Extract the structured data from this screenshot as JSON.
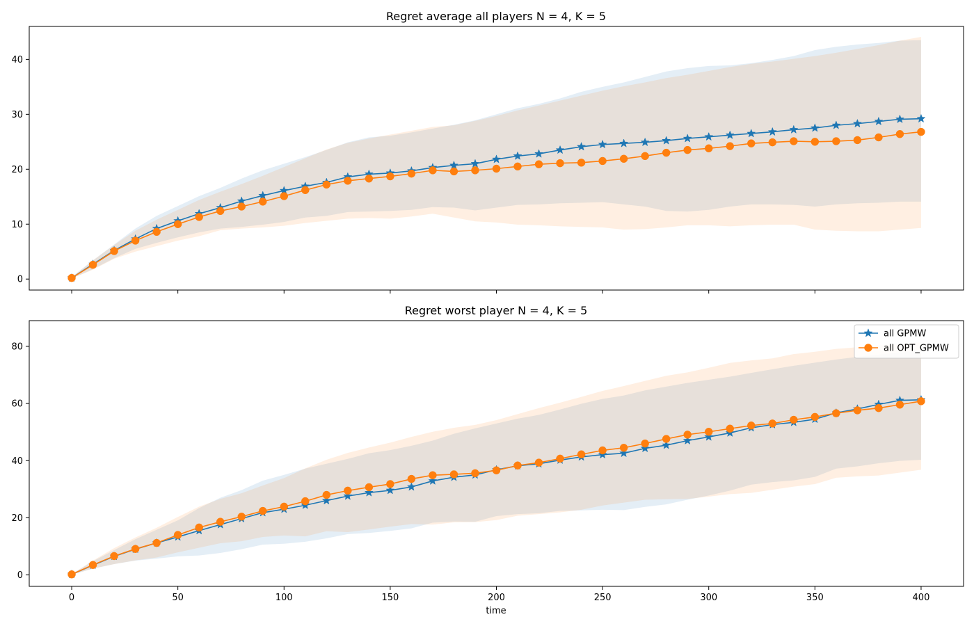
{
  "chart_data": [
    {
      "type": "line",
      "title": "Regret average all players N = 4, K = 5",
      "xlabel": "",
      "ylabel": "",
      "xlim": [
        -20,
        420
      ],
      "ylim": [
        -2,
        46
      ],
      "xticks": [
        0,
        50,
        100,
        150,
        200,
        250,
        300,
        350,
        400
      ],
      "xtick_labels_visible": false,
      "yticks": [
        0,
        10,
        20,
        30,
        40
      ],
      "grid": false,
      "legend": null,
      "x": [
        0,
        10,
        20,
        30,
        40,
        50,
        60,
        70,
        80,
        90,
        100,
        110,
        120,
        130,
        140,
        150,
        160,
        170,
        180,
        190,
        200,
        210,
        220,
        230,
        240,
        250,
        260,
        270,
        280,
        290,
        300,
        310,
        320,
        330,
        340,
        350,
        360,
        370,
        380,
        390,
        400
      ],
      "series": [
        {
          "name": "all GPMW",
          "color": "#1f77b4",
          "marker": "star",
          "values": [
            0.2,
            2.7,
            5.2,
            7.3,
            9.2,
            10.6,
            11.9,
            13.0,
            14.2,
            15.2,
            16.1,
            16.9,
            17.6,
            18.6,
            19.1,
            19.3,
            19.7,
            20.3,
            20.7,
            21.0,
            21.8,
            22.4,
            22.8,
            23.5,
            24.1,
            24.5,
            24.7,
            24.9,
            25.2,
            25.6,
            25.9,
            26.2,
            26.5,
            26.8,
            27.2,
            27.5,
            28.0,
            28.3,
            28.7,
            29.1,
            29.2
          ],
          "band_lower": [
            0.1,
            1.8,
            3.8,
            5.5,
            6.6,
            7.6,
            8.5,
            9.2,
            9.5,
            9.9,
            10.4,
            11.2,
            11.5,
            12.2,
            12.3,
            12.4,
            12.6,
            13.1,
            13.0,
            12.5,
            13.0,
            13.5,
            13.6,
            13.8,
            13.9,
            14.0,
            13.6,
            13.2,
            12.4,
            12.3,
            12.6,
            13.2,
            13.6,
            13.6,
            13.5,
            13.2,
            13.6,
            13.8,
            13.9,
            14.1,
            14.1
          ],
          "band_upper": [
            0.4,
            3.4,
            6.3,
            9.2,
            11.5,
            13.3,
            15.1,
            16.6,
            18.3,
            19.8,
            21.0,
            22.2,
            23.5,
            24.9,
            25.8,
            26.1,
            26.7,
            27.4,
            28.1,
            28.9,
            30.0,
            31.1,
            31.9,
            32.9,
            34.1,
            35.0,
            35.8,
            36.8,
            37.8,
            38.4,
            38.8,
            38.9,
            39.3,
            39.9,
            40.6,
            41.7,
            42.3,
            42.7,
            43.0,
            43.4,
            43.5
          ]
        },
        {
          "name": "all OPT_GPMW",
          "color": "#ff7f0e",
          "marker": "circle",
          "values": [
            0.2,
            2.6,
            5.1,
            7.0,
            8.6,
            10.0,
            11.3,
            12.4,
            13.2,
            14.1,
            15.1,
            16.2,
            17.2,
            17.9,
            18.3,
            18.7,
            19.2,
            19.8,
            19.6,
            19.8,
            20.1,
            20.5,
            20.9,
            21.1,
            21.2,
            21.5,
            21.9,
            22.4,
            23.0,
            23.5,
            23.8,
            24.2,
            24.7,
            24.9,
            25.1,
            25.0,
            25.1,
            25.3,
            25.8,
            26.4,
            26.8
          ],
          "band_lower": [
            0.1,
            1.7,
            3.7,
            5.0,
            6.0,
            7.0,
            7.8,
            8.9,
            9.2,
            9.4,
            9.7,
            10.2,
            10.6,
            11.0,
            11.1,
            11.0,
            11.4,
            11.9,
            11.2,
            10.5,
            10.3,
            9.9,
            9.8,
            9.6,
            9.5,
            9.4,
            9.0,
            9.1,
            9.4,
            9.8,
            9.8,
            9.6,
            9.8,
            9.9,
            9.9,
            9.0,
            8.8,
            8.7,
            8.7,
            9.0,
            9.3
          ],
          "band_upper": [
            0.3,
            3.4,
            6.2,
            8.8,
            10.8,
            12.6,
            14.4,
            15.9,
            17.3,
            18.8,
            20.4,
            22.0,
            23.6,
            24.8,
            25.6,
            26.3,
            27.0,
            27.7,
            28.0,
            28.8,
            29.7,
            30.7,
            31.6,
            32.5,
            33.4,
            34.3,
            35.1,
            35.8,
            36.6,
            37.2,
            37.9,
            38.6,
            39.2,
            39.6,
            40.1,
            40.6,
            41.2,
            41.9,
            42.6,
            43.4,
            44.1
          ]
        }
      ]
    },
    {
      "type": "line",
      "title": "Regret worst player N = 4, K = 5",
      "xlabel": "time",
      "ylabel": "",
      "xlim": [
        -20,
        420
      ],
      "ylim": [
        -4,
        89
      ],
      "xticks": [
        0,
        50,
        100,
        150,
        200,
        250,
        300,
        350,
        400
      ],
      "xtick_labels_visible": true,
      "yticks": [
        0,
        20,
        40,
        60,
        80
      ],
      "grid": false,
      "legend": "top-right",
      "x": [
        0,
        10,
        20,
        30,
        40,
        50,
        60,
        70,
        80,
        90,
        100,
        110,
        120,
        130,
        140,
        150,
        160,
        170,
        180,
        190,
        200,
        210,
        220,
        230,
        240,
        250,
        260,
        270,
        280,
        290,
        300,
        310,
        320,
        330,
        340,
        350,
        360,
        370,
        380,
        390,
        400
      ],
      "series": [
        {
          "name": "all GPMW",
          "color": "#1f77b4",
          "marker": "star",
          "values": [
            0.2,
            3.4,
            6.5,
            9.0,
            11.2,
            13.3,
            15.5,
            17.6,
            19.7,
            21.8,
            23.0,
            24.4,
            26.0,
            27.6,
            28.8,
            29.6,
            30.8,
            32.9,
            34.2,
            35.0,
            36.8,
            38.2,
            38.9,
            40.2,
            41.3,
            42.1,
            42.6,
            44.3,
            45.4,
            47.0,
            48.3,
            49.7,
            51.5,
            52.6,
            53.4,
            54.5,
            56.7,
            58.1,
            59.7,
            61.1,
            61.3
          ],
          "band_lower": [
            0.1,
            2.2,
            3.8,
            5.0,
            5.7,
            6.5,
            6.8,
            7.7,
            9.0,
            10.6,
            10.9,
            11.6,
            12.8,
            14.3,
            14.7,
            15.4,
            16.3,
            18.3,
            18.7,
            18.6,
            20.6,
            21.3,
            21.6,
            22.4,
            22.6,
            22.8,
            22.7,
            23.8,
            24.7,
            26.3,
            27.8,
            29.5,
            31.6,
            32.5,
            33.1,
            34.3,
            37.2,
            38.0,
            39.1,
            39.9,
            40.3
          ],
          "band_upper": [
            0.3,
            4.8,
            8.7,
            12.5,
            15.8,
            19.1,
            23.4,
            27.0,
            29.7,
            33.0,
            35.0,
            37.2,
            38.9,
            40.6,
            42.6,
            43.7,
            45.2,
            47.0,
            49.4,
            51.3,
            53.0,
            54.7,
            56.0,
            57.9,
            59.9,
            61.6,
            62.8,
            64.6,
            65.9,
            67.2,
            68.3,
            69.4,
            70.7,
            72.0,
            73.2,
            74.3,
            75.4,
            76.3,
            77.1,
            77.9,
            78.4
          ]
        },
        {
          "name": "all OPT_GPMW",
          "color": "#ff7f0e",
          "marker": "circle",
          "values": [
            0.2,
            3.5,
            6.6,
            9.1,
            11.2,
            14.0,
            16.6,
            18.6,
            20.4,
            22.4,
            23.9,
            25.8,
            28.0,
            29.5,
            30.7,
            31.8,
            33.6,
            34.9,
            35.2,
            35.6,
            36.6,
            38.3,
            39.3,
            40.7,
            42.2,
            43.6,
            44.5,
            46.0,
            47.6,
            49.1,
            50.1,
            51.2,
            52.3,
            53.0,
            54.3,
            55.3,
            56.6,
            57.6,
            58.4,
            59.6,
            60.8
          ],
          "band_lower": [
            0.1,
            2.2,
            3.8,
            5.1,
            6.1,
            7.9,
            9.5,
            11.1,
            11.8,
            13.3,
            13.8,
            13.5,
            15.3,
            15.0,
            15.9,
            16.9,
            17.8,
            17.6,
            18.4,
            18.5,
            19.2,
            20.7,
            21.3,
            21.9,
            22.8,
            24.3,
            25.3,
            26.3,
            26.5,
            26.6,
            27.4,
            28.3,
            28.7,
            29.8,
            30.9,
            31.8,
            34.0,
            34.5,
            34.8,
            35.8,
            36.8
          ],
          "band_upper": [
            0.3,
            5.0,
            9.4,
            13.1,
            16.5,
            20.3,
            23.9,
            26.6,
            28.6,
            31.3,
            33.9,
            37.3,
            40.3,
            42.7,
            44.6,
            46.3,
            48.3,
            50.1,
            51.5,
            52.5,
            54.2,
            56.3,
            58.4,
            60.3,
            62.3,
            64.4,
            66.1,
            67.9,
            69.7,
            70.9,
            72.5,
            74.2,
            75.1,
            75.8,
            77.3,
            78.1,
            79.1,
            79.7,
            80.4,
            80.8,
            81.4
          ]
        }
      ]
    }
  ]
}
